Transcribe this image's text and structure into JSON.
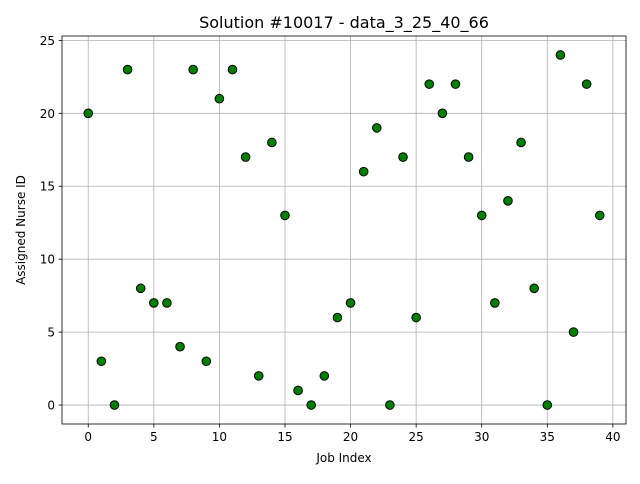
{
  "chart_data": {
    "type": "scatter",
    "title": "Solution #10017 - data_3_25_40_66",
    "xlabel": "Job Index",
    "ylabel": "Assigned Nurse ID",
    "xlim": [
      -2,
      41
    ],
    "ylim": [
      -1.3,
      25.3
    ],
    "xticks": [
      0,
      5,
      10,
      15,
      20,
      25,
      30,
      35,
      40
    ],
    "yticks": [
      0,
      5,
      10,
      15,
      20,
      25
    ],
    "grid": true,
    "marker_color": "#008000",
    "marker_edge_color": "#000000",
    "x": [
      0,
      1,
      2,
      3,
      4,
      5,
      6,
      7,
      8,
      9,
      10,
      11,
      12,
      13,
      14,
      15,
      16,
      17,
      18,
      19,
      20,
      21,
      22,
      23,
      24,
      25,
      26,
      27,
      28,
      29,
      30,
      31,
      32,
      33,
      34,
      35,
      36,
      37,
      38,
      39
    ],
    "y": [
      20,
      3,
      0,
      23,
      8,
      7,
      7,
      4,
      23,
      3,
      21,
      23,
      17,
      2,
      18,
      13,
      1,
      0,
      2,
      6,
      7,
      16,
      19,
      0,
      17,
      6,
      22,
      20,
      22,
      17,
      13,
      7,
      14,
      18,
      8,
      0,
      24,
      5,
      22,
      13
    ]
  }
}
